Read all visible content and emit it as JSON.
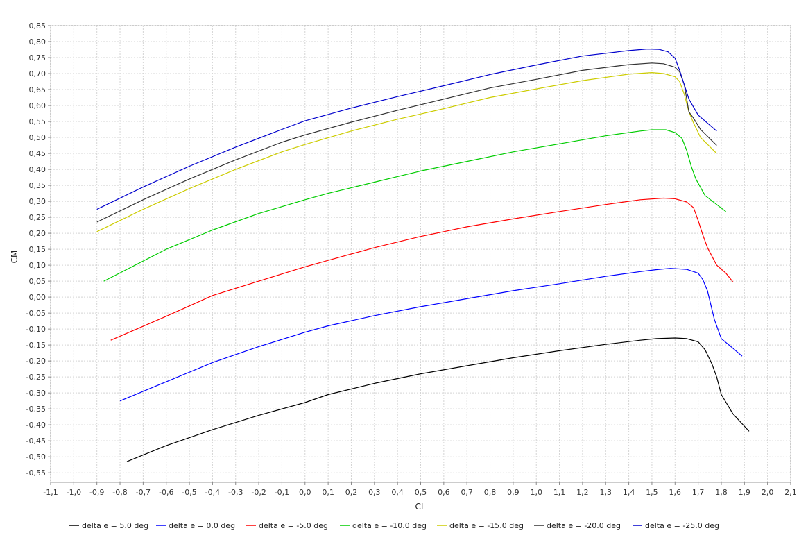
{
  "chart_data": {
    "type": "line",
    "title": "",
    "xlabel": "CL",
    "ylabel": "CM",
    "xlim": [
      -1.1,
      2.1
    ],
    "ylim": [
      -0.58,
      0.85
    ],
    "grid": true,
    "legend_position": "bottom",
    "x_ticks": [
      "-1,1",
      "-1,0",
      "-0,9",
      "-0,8",
      "-0,7",
      "-0,6",
      "-0,5",
      "-0,4",
      "-0,3",
      "-0,2",
      "-0,1",
      "0,0",
      "0,1",
      "0,2",
      "0,3",
      "0,4",
      "0,5",
      "0,6",
      "0,7",
      "0,8",
      "0,9",
      "1,0",
      "1,1",
      "1,2",
      "1,3",
      "1,4",
      "1,5",
      "1,6",
      "1,7",
      "1,8",
      "1,9",
      "2,0",
      "2,1"
    ],
    "y_ticks": [
      "0,85",
      "0,80",
      "0,75",
      "0,70",
      "0,65",
      "0,60",
      "0,55",
      "0,50",
      "0,45",
      "0,40",
      "0,35",
      "0,30",
      "0,25",
      "0,20",
      "0,15",
      "0,10",
      "0,05",
      "0,00",
      "-0,05",
      "-0,10",
      "-0,15",
      "-0,20",
      "-0,25",
      "-0,30",
      "-0,35",
      "-0,40",
      "-0,45",
      "-0,50",
      "-0,55"
    ],
    "series": [
      {
        "name": "delta e = 5.0 deg",
        "color": "#000000",
        "points": [
          [
            -0.77,
            -0.515
          ],
          [
            -0.6,
            -0.465
          ],
          [
            -0.4,
            -0.415
          ],
          [
            -0.2,
            -0.37
          ],
          [
            0.0,
            -0.33
          ],
          [
            0.1,
            -0.305
          ],
          [
            0.3,
            -0.27
          ],
          [
            0.5,
            -0.24
          ],
          [
            0.7,
            -0.215
          ],
          [
            0.9,
            -0.19
          ],
          [
            1.1,
            -0.168
          ],
          [
            1.3,
            -0.148
          ],
          [
            1.45,
            -0.135
          ],
          [
            1.52,
            -0.13
          ],
          [
            1.6,
            -0.128
          ],
          [
            1.65,
            -0.13
          ],
          [
            1.7,
            -0.14
          ],
          [
            1.73,
            -0.165
          ],
          [
            1.76,
            -0.21
          ],
          [
            1.78,
            -0.25
          ],
          [
            1.8,
            -0.305
          ],
          [
            1.85,
            -0.365
          ],
          [
            1.92,
            -0.42
          ]
        ]
      },
      {
        "name": "delta e = 0.0 deg",
        "color": "#0000ff",
        "points": [
          [
            -0.8,
            -0.325
          ],
          [
            -0.6,
            -0.265
          ],
          [
            -0.4,
            -0.205
          ],
          [
            -0.2,
            -0.155
          ],
          [
            0.0,
            -0.11
          ],
          [
            0.1,
            -0.09
          ],
          [
            0.3,
            -0.058
          ],
          [
            0.5,
            -0.03
          ],
          [
            0.7,
            -0.005
          ],
          [
            0.9,
            0.02
          ],
          [
            1.1,
            0.042
          ],
          [
            1.3,
            0.065
          ],
          [
            1.45,
            0.08
          ],
          [
            1.52,
            0.086
          ],
          [
            1.58,
            0.09
          ],
          [
            1.65,
            0.087
          ],
          [
            1.7,
            0.075
          ],
          [
            1.72,
            0.055
          ],
          [
            1.74,
            0.02
          ],
          [
            1.77,
            -0.07
          ],
          [
            1.8,
            -0.13
          ],
          [
            1.85,
            -0.16
          ],
          [
            1.89,
            -0.185
          ]
        ]
      },
      {
        "name": "delta e = -5.0 deg",
        "color": "#ff0000",
        "points": [
          [
            -0.84,
            -0.135
          ],
          [
            -0.6,
            -0.06
          ],
          [
            -0.4,
            0.005
          ],
          [
            -0.2,
            0.05
          ],
          [
            0.0,
            0.095
          ],
          [
            0.1,
            0.115
          ],
          [
            0.3,
            0.155
          ],
          [
            0.5,
            0.19
          ],
          [
            0.7,
            0.22
          ],
          [
            0.9,
            0.245
          ],
          [
            1.1,
            0.268
          ],
          [
            1.3,
            0.29
          ],
          [
            1.45,
            0.305
          ],
          [
            1.55,
            0.31
          ],
          [
            1.6,
            0.308
          ],
          [
            1.65,
            0.298
          ],
          [
            1.68,
            0.28
          ],
          [
            1.7,
            0.24
          ],
          [
            1.72,
            0.195
          ],
          [
            1.74,
            0.155
          ],
          [
            1.78,
            0.1
          ],
          [
            1.82,
            0.075
          ],
          [
            1.85,
            0.048
          ]
        ]
      },
      {
        "name": "delta e = -10.0 deg",
        "color": "#00cc00",
        "points": [
          [
            -0.87,
            0.05
          ],
          [
            -0.6,
            0.15
          ],
          [
            -0.4,
            0.21
          ],
          [
            -0.2,
            0.262
          ],
          [
            0.0,
            0.305
          ],
          [
            0.1,
            0.325
          ],
          [
            0.3,
            0.36
          ],
          [
            0.5,
            0.395
          ],
          [
            0.7,
            0.425
          ],
          [
            0.9,
            0.455
          ],
          [
            1.1,
            0.48
          ],
          [
            1.3,
            0.505
          ],
          [
            1.45,
            0.52
          ],
          [
            1.5,
            0.524
          ],
          [
            1.56,
            0.524
          ],
          [
            1.6,
            0.515
          ],
          [
            1.63,
            0.497
          ],
          [
            1.65,
            0.46
          ],
          [
            1.67,
            0.41
          ],
          [
            1.69,
            0.37
          ],
          [
            1.73,
            0.318
          ],
          [
            1.78,
            0.29
          ],
          [
            1.82,
            0.268
          ]
        ]
      },
      {
        "name": "delta e = -15.0 deg",
        "color": "#cccc00",
        "points": [
          [
            -0.9,
            0.205
          ],
          [
            -0.7,
            0.275
          ],
          [
            -0.5,
            0.34
          ],
          [
            -0.3,
            0.4
          ],
          [
            -0.1,
            0.455
          ],
          [
            0.0,
            0.478
          ],
          [
            0.2,
            0.52
          ],
          [
            0.4,
            0.557
          ],
          [
            0.6,
            0.59
          ],
          [
            0.8,
            0.625
          ],
          [
            1.0,
            0.652
          ],
          [
            1.2,
            0.678
          ],
          [
            1.4,
            0.698
          ],
          [
            1.5,
            0.703
          ],
          [
            1.55,
            0.7
          ],
          [
            1.6,
            0.69
          ],
          [
            1.62,
            0.675
          ],
          [
            1.64,
            0.635
          ],
          [
            1.66,
            0.58
          ],
          [
            1.68,
            0.545
          ],
          [
            1.71,
            0.5
          ],
          [
            1.78,
            0.45
          ]
        ]
      },
      {
        "name": "delta e = -20.0 deg",
        "color": "#333333",
        "points": [
          [
            -0.9,
            0.235
          ],
          [
            -0.7,
            0.305
          ],
          [
            -0.5,
            0.37
          ],
          [
            -0.3,
            0.43
          ],
          [
            -0.1,
            0.485
          ],
          [
            0.0,
            0.508
          ],
          [
            0.2,
            0.548
          ],
          [
            0.4,
            0.585
          ],
          [
            0.6,
            0.62
          ],
          [
            0.8,
            0.655
          ],
          [
            1.0,
            0.682
          ],
          [
            1.2,
            0.71
          ],
          [
            1.4,
            0.728
          ],
          [
            1.5,
            0.733
          ],
          [
            1.55,
            0.731
          ],
          [
            1.6,
            0.72
          ],
          [
            1.62,
            0.705
          ],
          [
            1.64,
            0.665
          ],
          [
            1.66,
            0.58
          ],
          [
            1.68,
            0.56
          ],
          [
            1.71,
            0.525
          ],
          [
            1.78,
            0.475
          ]
        ]
      },
      {
        "name": "delta e = -25.0 deg",
        "color": "#0000cc",
        "points": [
          [
            -0.9,
            0.275
          ],
          [
            -0.7,
            0.345
          ],
          [
            -0.5,
            0.41
          ],
          [
            -0.3,
            0.47
          ],
          [
            -0.1,
            0.525
          ],
          [
            0.0,
            0.552
          ],
          [
            0.2,
            0.592
          ],
          [
            0.4,
            0.628
          ],
          [
            0.6,
            0.662
          ],
          [
            0.8,
            0.697
          ],
          [
            1.0,
            0.727
          ],
          [
            1.2,
            0.755
          ],
          [
            1.4,
            0.772
          ],
          [
            1.48,
            0.777
          ],
          [
            1.53,
            0.776
          ],
          [
            1.57,
            0.768
          ],
          [
            1.6,
            0.748
          ],
          [
            1.62,
            0.71
          ],
          [
            1.64,
            0.665
          ],
          [
            1.66,
            0.62
          ],
          [
            1.7,
            0.57
          ],
          [
            1.78,
            0.52
          ]
        ]
      }
    ]
  }
}
